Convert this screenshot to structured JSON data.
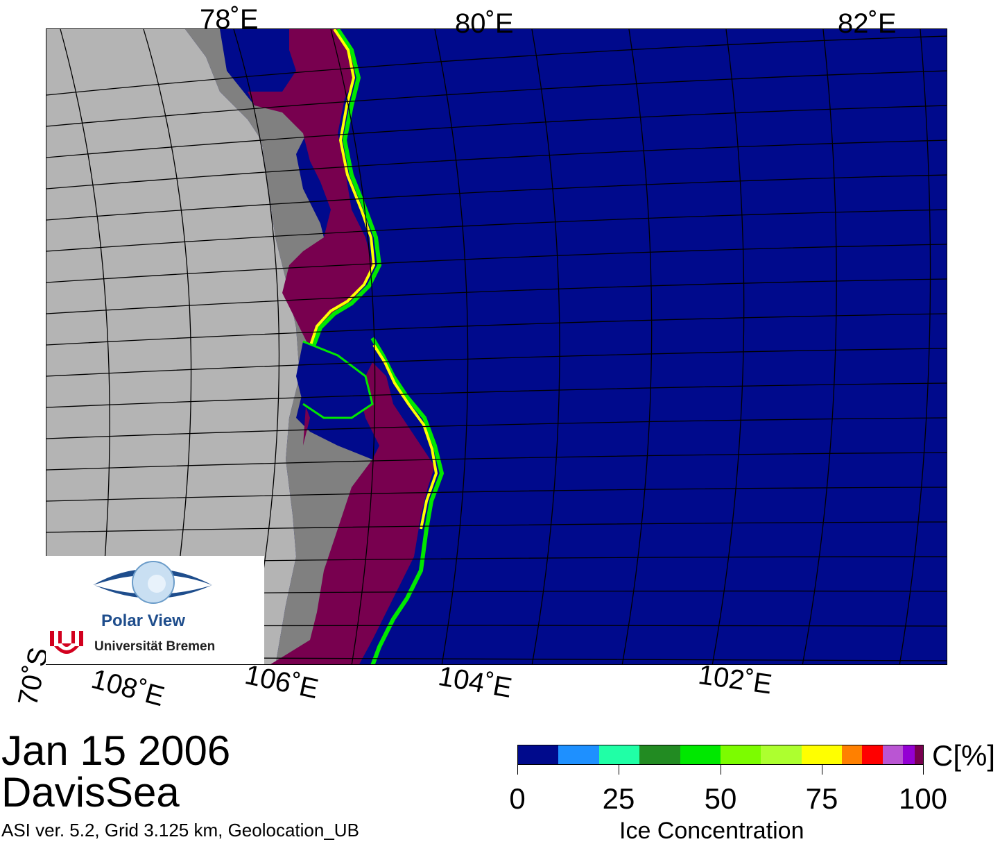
{
  "map": {
    "lon_labels_top": [
      "78˚E",
      "80˚E",
      "82˚E"
    ],
    "lon_labels_bottom": [
      "108˚E",
      "106˚E",
      "104˚E",
      "102˚E"
    ],
    "lat_label": "70˚S",
    "colors": {
      "open_water": "#000a8c",
      "land": "#b4b4b4",
      "land_shelf": "#808080",
      "ice_high": "#78004f",
      "grid": "#000000"
    }
  },
  "logo": {
    "line1": "Polar View",
    "line2": "Universität Bremen"
  },
  "caption": {
    "date": "Jan 15 2006",
    "region": "DavisSea",
    "info": "ASI ver. 5.2,  Grid 3.125 km, Geolocation_UB"
  },
  "legend": {
    "unit": "C[%]",
    "title": "Ice Concentration",
    "ticks": [
      "0",
      "25",
      "50",
      "75",
      "100"
    ],
    "colors": [
      "#000a8c",
      "#1e90ff",
      "#20ffa6",
      "#228b22",
      "#00e800",
      "#7cfc00",
      "#adff2f",
      "#ffff00",
      "#ff8000",
      "#ff0000",
      "#ba55d3",
      "#9400d3",
      "#78004f"
    ]
  }
}
